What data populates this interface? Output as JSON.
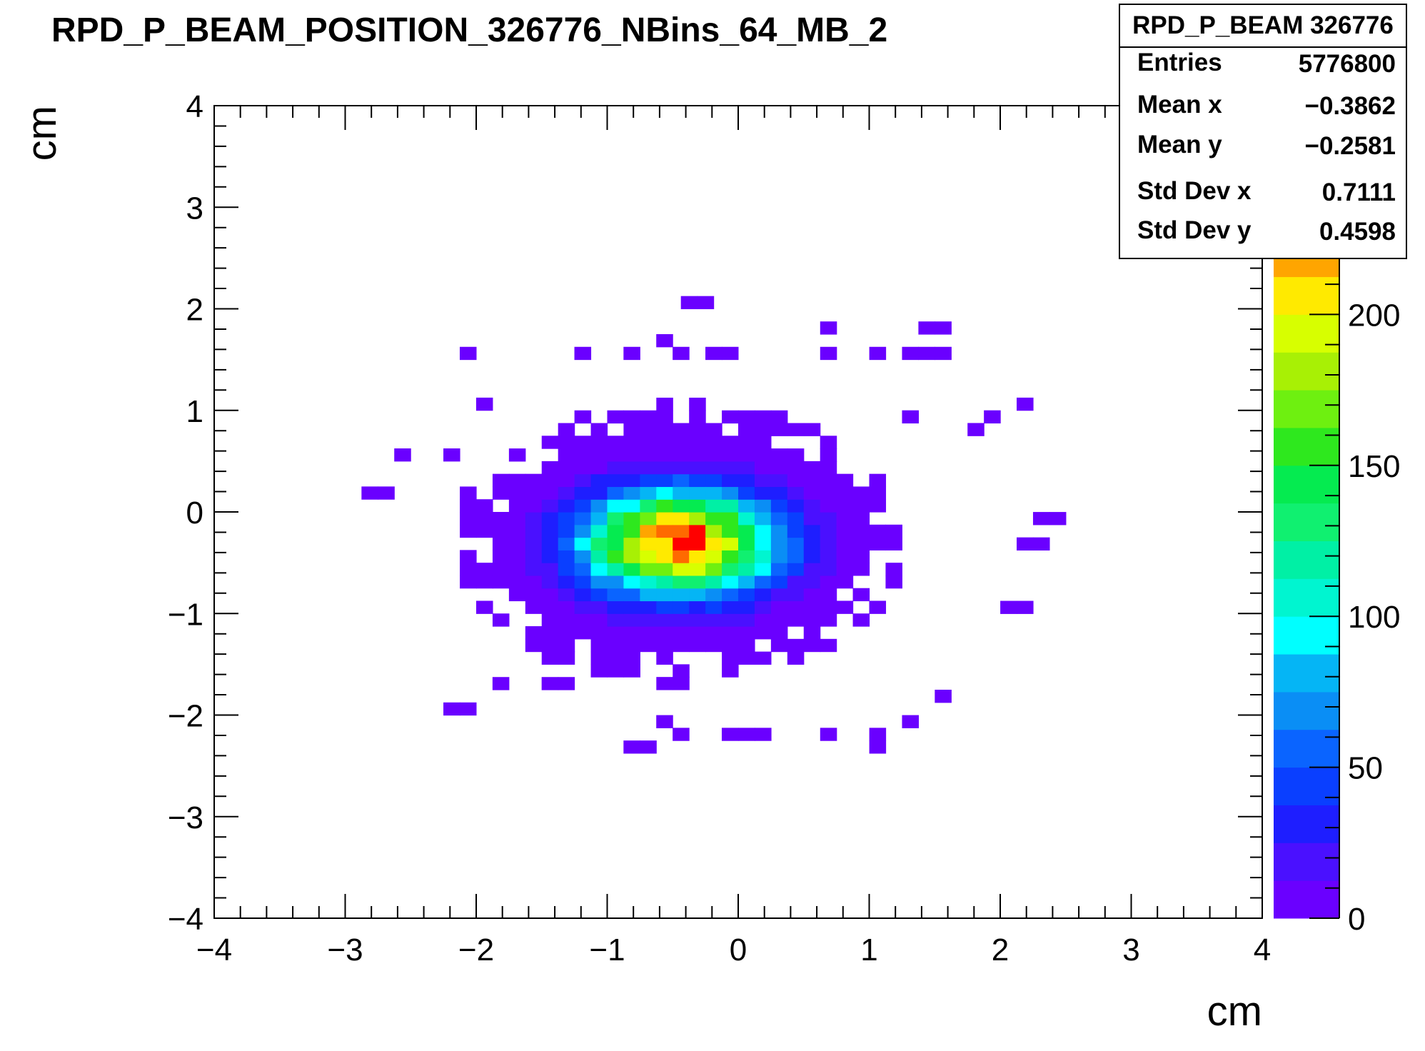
{
  "chart_data": {
    "type": "heatmap",
    "title": "RPD_P_BEAM_POSITION_326776_NBins_64_MB_2",
    "xlabel": "cm",
    "ylabel": "cm",
    "xlim": [
      -4,
      4
    ],
    "ylim": [
      -4,
      4
    ],
    "x_ticks": [
      "−4",
      "−3",
      "−2",
      "−1",
      "0",
      "1",
      "2",
      "3",
      "4"
    ],
    "y_ticks": [
      "4",
      "3",
      "2",
      "1",
      "0",
      "−1",
      "−2",
      "−3",
      "−4"
    ],
    "z_ticks": [
      "0",
      "50",
      "100",
      "150",
      "200"
    ],
    "zlim": [
      0,
      250
    ],
    "bins": 64,
    "bin_width": 0.125,
    "palette": [
      "#6a00ff",
      "#4a10ff",
      "#1e1eff",
      "#0a3fff",
      "#0a64ff",
      "#0a8ef5",
      "#05b5f5",
      "#00ffff",
      "#00f5d0",
      "#00f0a5",
      "#10f070",
      "#05eb50",
      "#2ee81e",
      "#6ef010",
      "#a8f005",
      "#d7ff00",
      "#ffea00",
      "#ffa500",
      "#ff6a00",
      "#ff0000"
    ],
    "stats": {
      "name": "RPD_P_BEAM 326776",
      "rows": [
        {
          "label": "Entries",
          "value": "5776800"
        },
        {
          "label": "Mean x",
          "value": "−0.3862"
        },
        {
          "label": "Mean y",
          "value": "−0.2581"
        },
        {
          "label": "Std Dev x",
          "value": "0.7111"
        },
        {
          "label": "Std Dev y",
          "value": "0.4598"
        }
      ]
    },
    "distribution": {
      "center_x": -0.45,
      "center_y": -0.3,
      "peak": 245
    },
    "isolated_bins": [
      [
        -0.375,
        2.063
      ],
      [
        -0.25,
        2.063
      ],
      [
        0.688,
        1.813
      ],
      [
        1.438,
        1.813
      ],
      [
        1.563,
        1.813
      ],
      [
        -2.063,
        1.563
      ],
      [
        -1.188,
        1.563
      ],
      [
        -0.813,
        1.563
      ],
      [
        0.688,
        1.563
      ],
      [
        1.063,
        1.563
      ],
      [
        1.313,
        1.563
      ],
      [
        1.438,
        1.563
      ],
      [
        1.563,
        1.563
      ],
      [
        -0.063,
        1.563
      ],
      [
        -0.438,
        1.563
      ],
      [
        -0.563,
        1.688
      ],
      [
        -0.188,
        1.563
      ],
      [
        -1.938,
        1.063
      ],
      [
        2.188,
        1.063
      ],
      [
        1.938,
        0.938
      ],
      [
        1.313,
        0.938
      ],
      [
        1.813,
        0.813
      ],
      [
        -2.563,
        0.563
      ],
      [
        -2.188,
        0.563
      ],
      [
        -2.813,
        0.188
      ],
      [
        -2.688,
        0.188
      ],
      [
        2.313,
        -0.063
      ],
      [
        2.438,
        -0.063
      ],
      [
        2.188,
        -0.313
      ],
      [
        2.313,
        -0.313
      ],
      [
        2.063,
        -0.938
      ],
      [
        2.188,
        -0.938
      ],
      [
        -1.813,
        -1.688
      ],
      [
        -1.438,
        -1.688
      ],
      [
        -1.313,
        -1.688
      ],
      [
        1.563,
        -1.813
      ],
      [
        -2.188,
        -1.938
      ],
      [
        -2.063,
        -1.938
      ],
      [
        -0.563,
        -2.063
      ],
      [
        1.313,
        -2.063
      ],
      [
        -0.438,
        -2.188
      ],
      [
        -0.063,
        -2.188
      ],
      [
        0.063,
        -2.188
      ],
      [
        0.188,
        -2.188
      ],
      [
        0.688,
        -2.188
      ],
      [
        1.063,
        -2.188
      ],
      [
        -0.813,
        -2.313
      ],
      [
        -0.688,
        -2.313
      ],
      [
        1.063,
        -2.313
      ]
    ]
  }
}
